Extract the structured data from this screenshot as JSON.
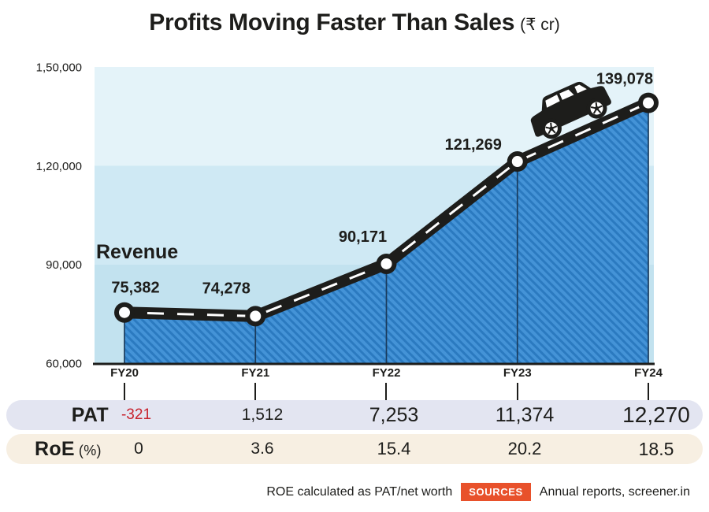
{
  "title": {
    "main": "Profits Moving Faster Than Sales",
    "unit": "(₹ cr)"
  },
  "chart_data": {
    "type": "area",
    "series_label": "Revenue",
    "categories": [
      "FY20",
      "FY21",
      "FY22",
      "FY23",
      "FY24"
    ],
    "values": [
      75382,
      74278,
      90171,
      121269,
      139078
    ],
    "value_labels": [
      "75,382",
      "74,278",
      "90,171",
      "121,269",
      "139,078"
    ],
    "ylim": [
      60000,
      150000
    ],
    "yticks": [
      {
        "value": 150000,
        "label": "1,50,000"
      },
      {
        "value": 120000,
        "label": "1,20,000"
      },
      {
        "value": 90000,
        "label": "90,000"
      },
      {
        "value": 60000,
        "label": "60,000"
      }
    ],
    "grid": "banded-background",
    "legend_position": "inside-left",
    "colors": {
      "bands": [
        "#e4f3f9",
        "#cfe9f4",
        "#c2e2ef"
      ],
      "area_base": "#4493d7",
      "area_stripe": "#2b7ac0",
      "road": "#1d1d1b",
      "road_dash": "#ffffff",
      "point_fill": "#ffffff",
      "drop_line": "#1a3b5c",
      "axis": "#1d1d1b"
    }
  },
  "table": {
    "rows": [
      {
        "label": "PAT",
        "unit": "",
        "values": [
          "-321",
          "1,512",
          "7,253",
          "11,374",
          "12,270"
        ],
        "bg": "#e3e5f1",
        "negative_color": "#c8232e"
      },
      {
        "label": "RoE",
        "unit": "(%)",
        "values": [
          "0",
          "3.6",
          "15.4",
          "20.2",
          "18.5"
        ],
        "bg": "#f7efe2"
      }
    ]
  },
  "footer": {
    "note": "ROE calculated as PAT/net worth",
    "sources_label": "SOURCES",
    "sources_text": "Annual reports, screener.in",
    "sources_bg": "#e8512b"
  }
}
